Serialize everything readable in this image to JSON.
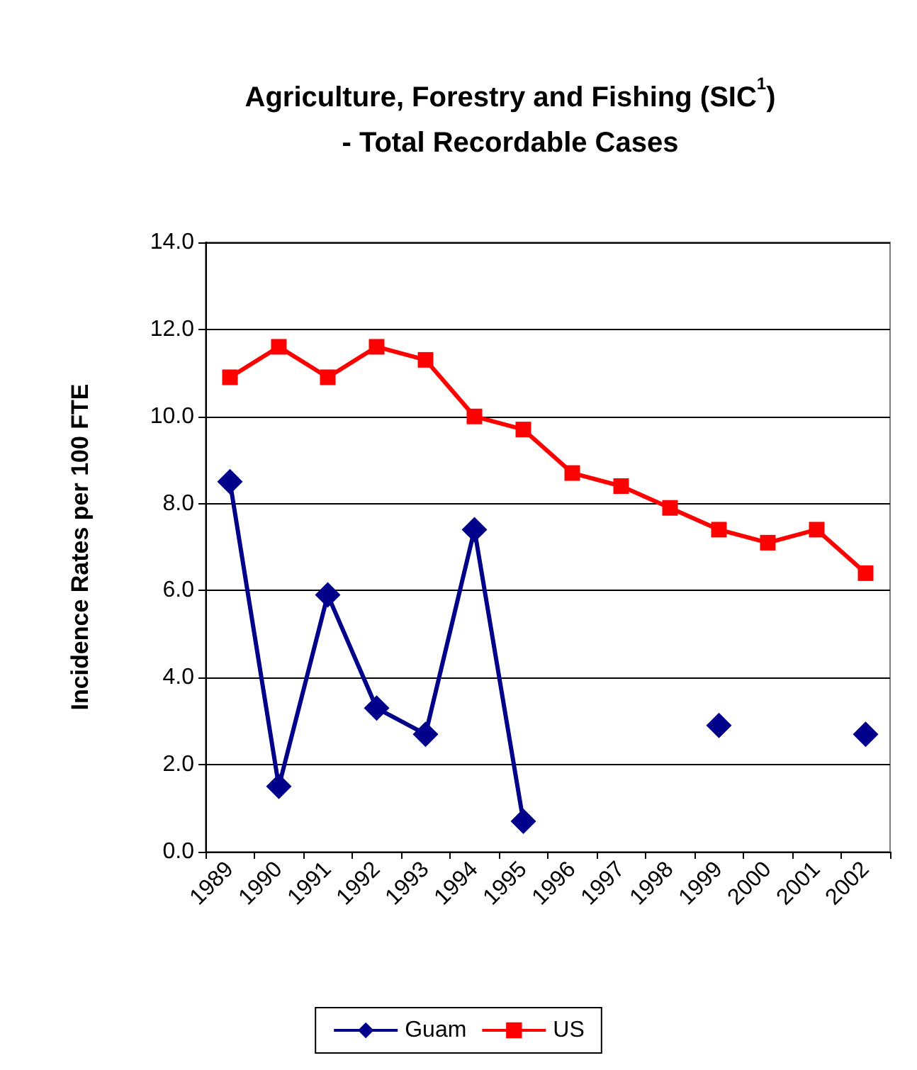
{
  "chart_data": {
    "type": "line",
    "title": "Agriculture, Forestry and Fishing (SIC$^{1}$)\n- Total Recordable Cases",
    "ylabel": "Incidence Rates per 100 FTE",
    "categories": [
      "1989",
      "1990",
      "1991",
      "1992",
      "1993",
      "1994",
      "1995",
      "1996",
      "1997",
      "1998",
      "1999",
      "2000",
      "2001",
      "2002"
    ],
    "series": [
      {
        "name": "Guam",
        "color": "#00008b",
        "marker": "diamond",
        "values": [
          8.5,
          1.5,
          5.9,
          3.3,
          2.7,
          7.4,
          0.7,
          null,
          null,
          null,
          2.9,
          null,
          null,
          2.7
        ]
      },
      {
        "name": "US",
        "color": "#ff0000",
        "marker": "square",
        "values": [
          10.9,
          11.6,
          10.9,
          11.6,
          11.3,
          10.0,
          9.7,
          8.7,
          8.4,
          7.9,
          7.4,
          7.1,
          7.4,
          6.4
        ]
      }
    ],
    "ylim": [
      0,
      14
    ],
    "yticks": [
      {
        "value": 0,
        "label": "0.0"
      },
      {
        "value": 2,
        "label": "2.0"
      },
      {
        "value": 4,
        "label": "4.0"
      },
      {
        "value": 6,
        "label": "6.0"
      },
      {
        "value": 8,
        "label": "8.0"
      },
      {
        "value": 10,
        "label": "10.0"
      },
      {
        "value": 12,
        "label": "12.0"
      },
      {
        "value": 14,
        "label": "14.0"
      }
    ],
    "grid": "y",
    "legend": "bottom"
  }
}
